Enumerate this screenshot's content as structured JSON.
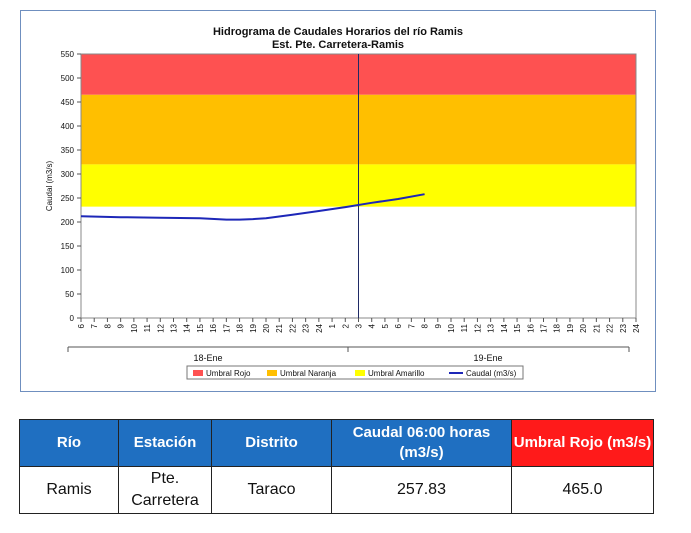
{
  "chart_data": {
    "type": "line",
    "title": "Hidrograma de Caudales Horarios del río Ramis",
    "subtitle": "Est. Pte. Carretera-Ramis",
    "ylabel": "Caudal  (m3/s)",
    "ylim": [
      0,
      550
    ],
    "yticks": [
      0,
      50,
      100,
      150,
      200,
      250,
      300,
      350,
      400,
      450,
      500,
      550
    ],
    "x_tick_labels": [
      "6",
      "7",
      "8",
      "9",
      "10",
      "11",
      "12",
      "13",
      "14",
      "15",
      "16",
      "17",
      "18",
      "19",
      "20",
      "21",
      "22",
      "23",
      "24",
      "1",
      "2",
      "3",
      "4",
      "5",
      "6",
      "7",
      "8",
      "9",
      "10",
      "11",
      "12",
      "13",
      "14",
      "15",
      "16",
      "17",
      "18",
      "19",
      "20",
      "21",
      "22",
      "23",
      "24"
    ],
    "day_labels": [
      "18-Ene",
      "19-Ene"
    ],
    "thresholds": [
      {
        "name": "Umbral Rojo",
        "from": 465,
        "to": 550,
        "color": "#fe5151"
      },
      {
        "name": "Umbral Naranja",
        "from": 320,
        "to": 465,
        "color": "#ffbf00"
      },
      {
        "name": "Umbral Amarillo",
        "from": 232,
        "to": 320,
        "color": "#ffff00"
      }
    ],
    "series": [
      {
        "name": "Caudal (m3/s)",
        "color": "#1d27b8",
        "x_index": [
          0,
          3,
          6,
          9,
          11,
          12,
          13,
          14,
          16,
          18,
          20,
          22,
          24
        ],
        "values": [
          212,
          210,
          209,
          208,
          205,
          205,
          206,
          208,
          215,
          223,
          231,
          240,
          248
        ]
      }
    ],
    "extra_points": [
      {
        "x_index": 26,
        "value": 257.83
      }
    ],
    "vline_x_index": 21,
    "legend": [
      "Umbral Rojo",
      "Umbral Naranja",
      "Umbral Amarillo",
      "Caudal (m3/s)"
    ],
    "legend_position": "bottom"
  },
  "table": {
    "headers": [
      "Río",
      "Estación",
      "Distrito",
      "Caudal  06:00 horas (m3/s)",
      "Umbral Rojo (m3/s)"
    ],
    "row": [
      "Ramis",
      "Pte. Carretera",
      "Taraco",
      "257.83",
      "465.0"
    ]
  }
}
